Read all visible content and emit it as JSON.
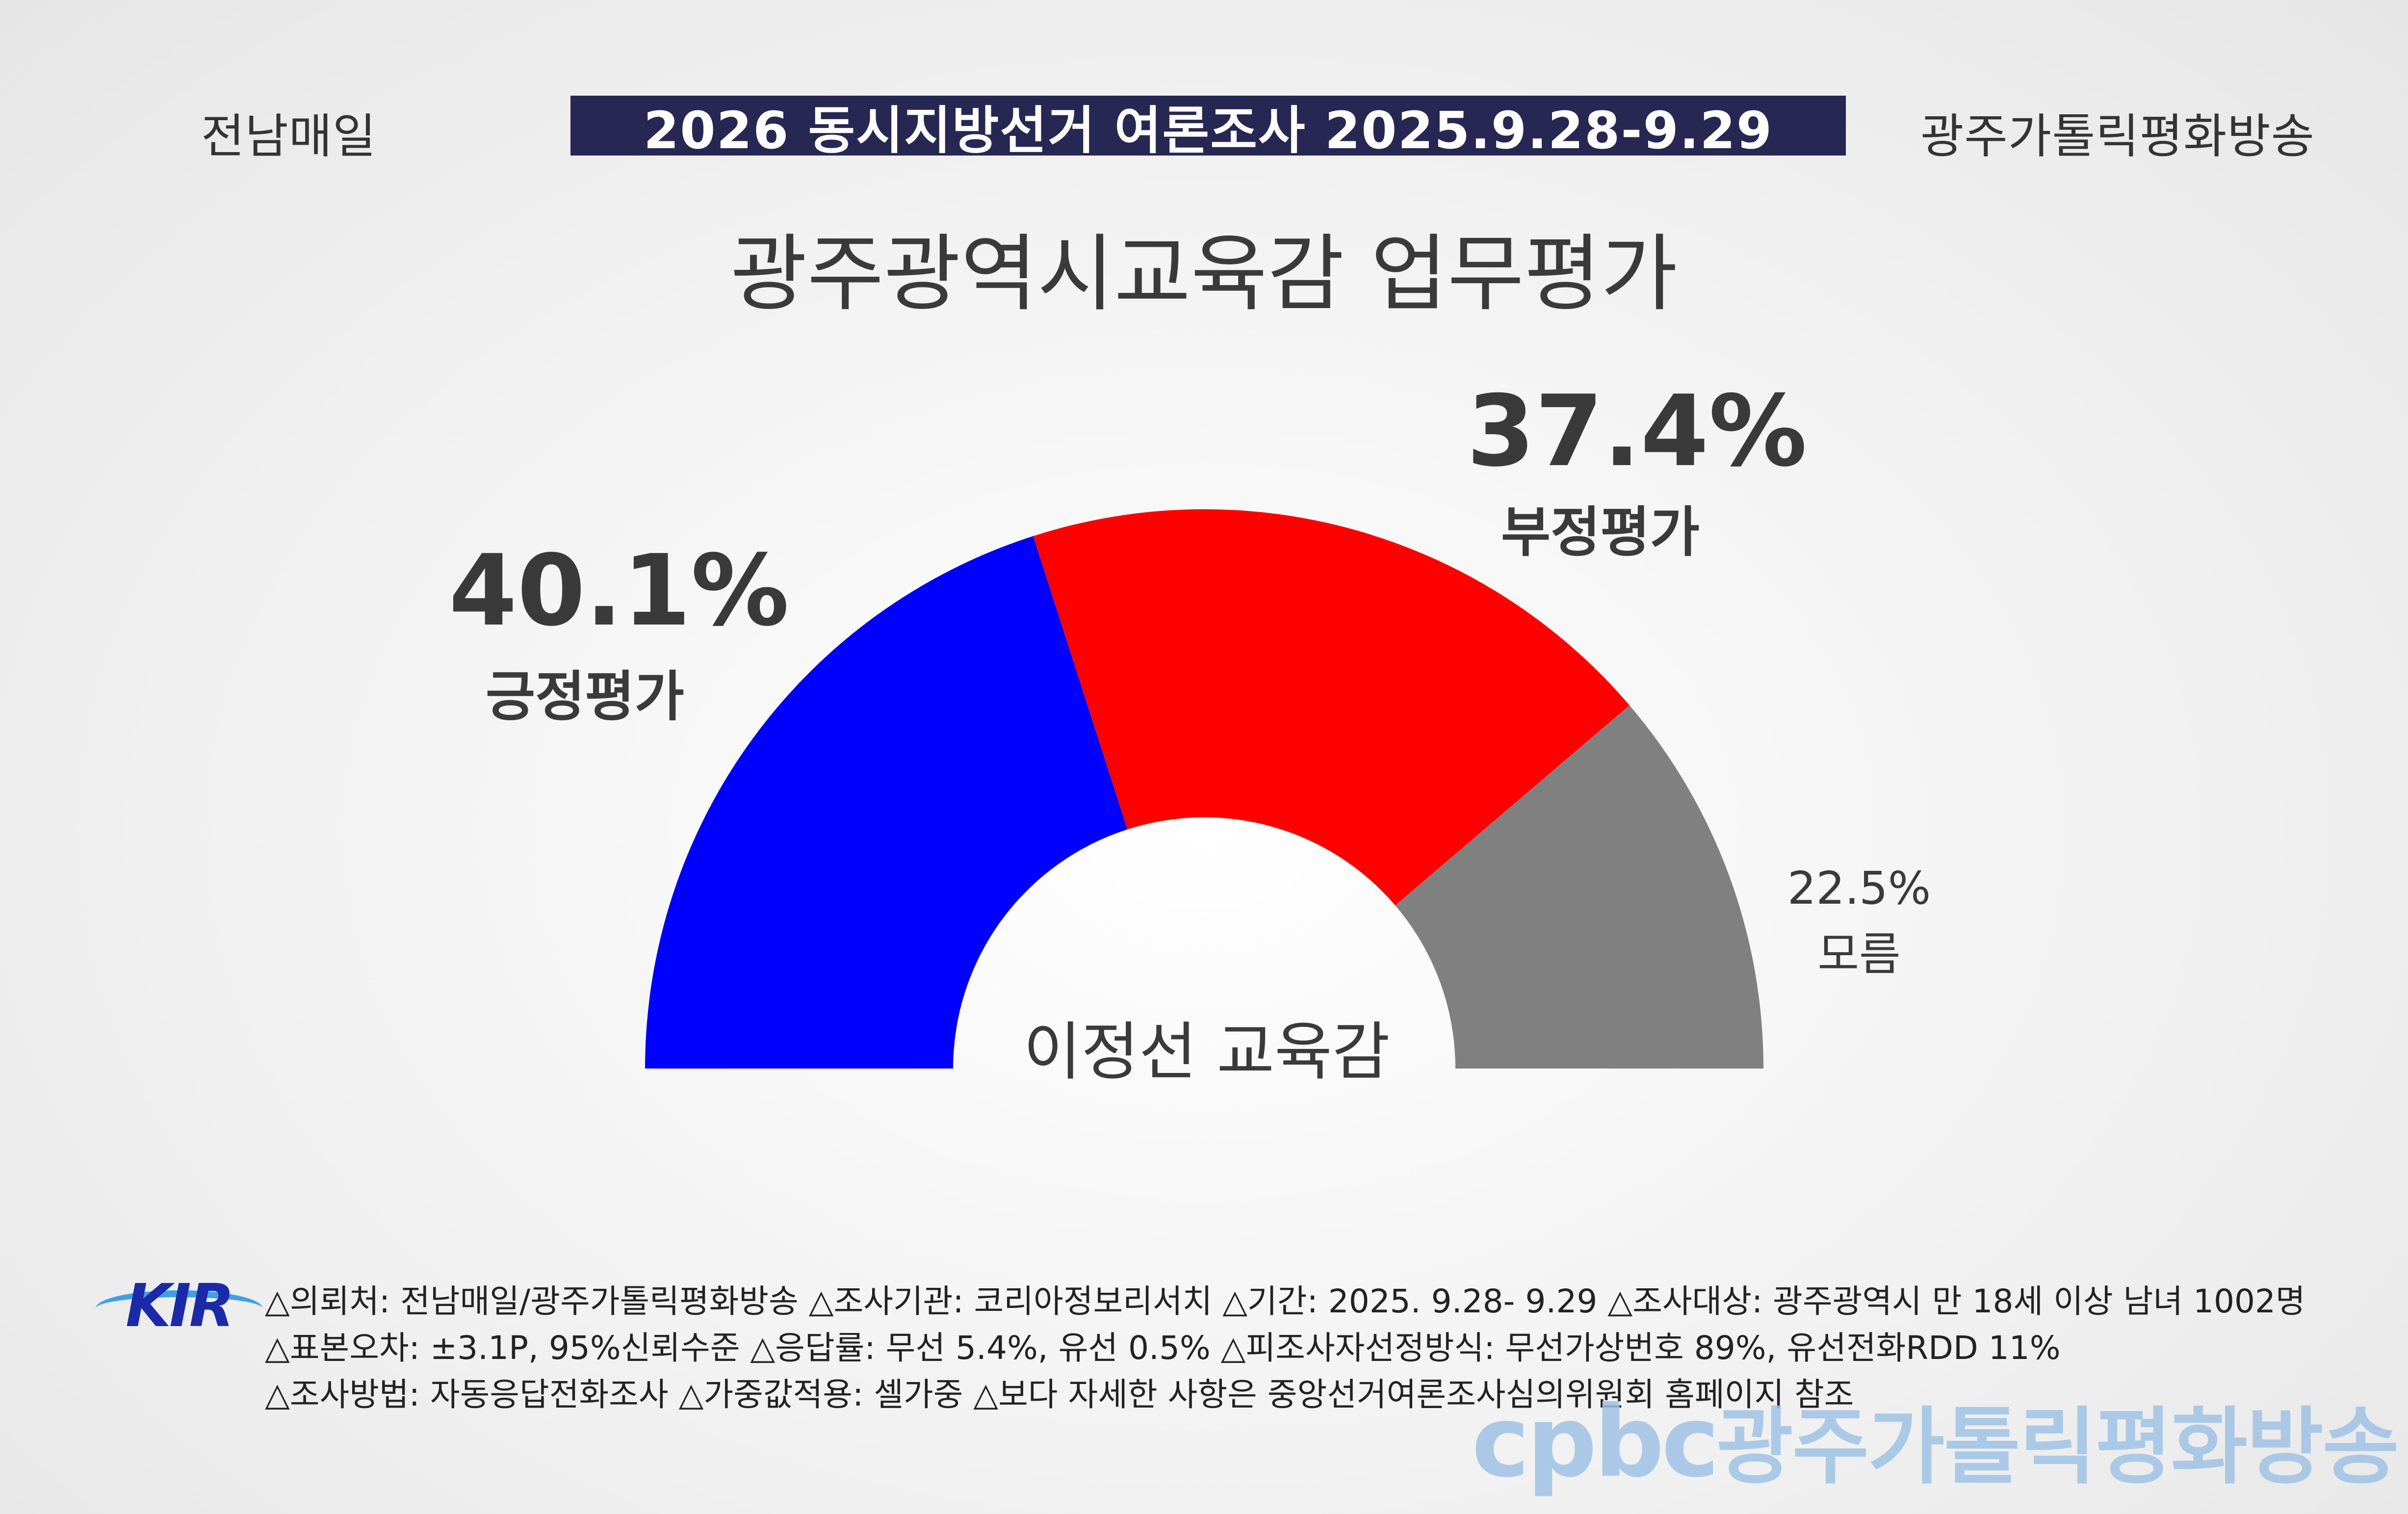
{
  "header": {
    "left": "전남매일",
    "banner": "2026 동시지방선거 여론조사 2025.9.28-9.29",
    "right": "광주가톨릭평화방송"
  },
  "chart_data": {
    "type": "pie",
    "variant": "half-donut",
    "title": "광주광역시교육감 업무평가",
    "center_label": "이정선 교육감",
    "slices": [
      {
        "name": "긍정평가",
        "value": 40.1,
        "label": "40.1%",
        "color": "#0000ff"
      },
      {
        "name": "부정평가",
        "value": 37.4,
        "label": "37.4%",
        "color": "#ff0000"
      },
      {
        "name": "모름",
        "value": 22.5,
        "label": "22.5%",
        "color": "#808080"
      }
    ]
  },
  "footer": {
    "logo_text": "KIR",
    "line1": "△의뢰처: 전남매일/광주가톨릭평화방송 △조사기관: 코리아정보리서치 △기간: 2025. 9.28- 9.29 △조사대상: 광주광역시 만 18세 이상 남녀 1002명",
    "line2": "△표본오차: ±3.1P, 95%신뢰수준 △응답률: 무선 5.4%, 유선 0.5% △피조사자선정방식: 무선가상번호 89%, 유선전화RDD 11%",
    "line3": "△조사방법: 자동응답전화조사 △가중값적용: 셀가중 △보다 자세한 사항은 중앙선거여론조사심의위원회 홈페이지 참조"
  },
  "watermark": {
    "brand": "cpbc",
    "name": "광주가톨릭평화방송"
  }
}
